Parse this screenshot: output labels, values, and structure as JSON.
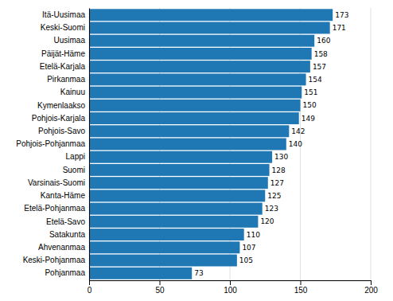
{
  "chart_data": {
    "type": "bar",
    "orientation": "horizontal",
    "categories": [
      "Pohjanmaa",
      "Keski-Pohjanmaa",
      "Ahvenanmaa",
      "Satakunta",
      "Etelä-Savo",
      "Etelä-Pohjanmaa",
      "Kanta-Häme",
      "Varsinais-Suomi",
      "Suomi",
      "Lappi",
      "Pohjois-Pohjanmaa",
      "Pohjois-Savo",
      "Pohjois-Karjala",
      "Kymenlaakso",
      "Kainuu",
      "Pirkanmaa",
      "Etelä-Karjala",
      "Päijät-Häme",
      "Uusimaa",
      "Keski-Suomi",
      "Itä-Uusimaa"
    ],
    "values": [
      73,
      105,
      107,
      110,
      120,
      123,
      125,
      127,
      128,
      130,
      140,
      142,
      149,
      150,
      151,
      154,
      157,
      158,
      160,
      171,
      173
    ],
    "color": "#1F77B4",
    "xlim": [
      0,
      200
    ],
    "xticks": [
      0,
      50,
      100,
      150,
      200
    ],
    "grid": true,
    "data_labels": true
  }
}
